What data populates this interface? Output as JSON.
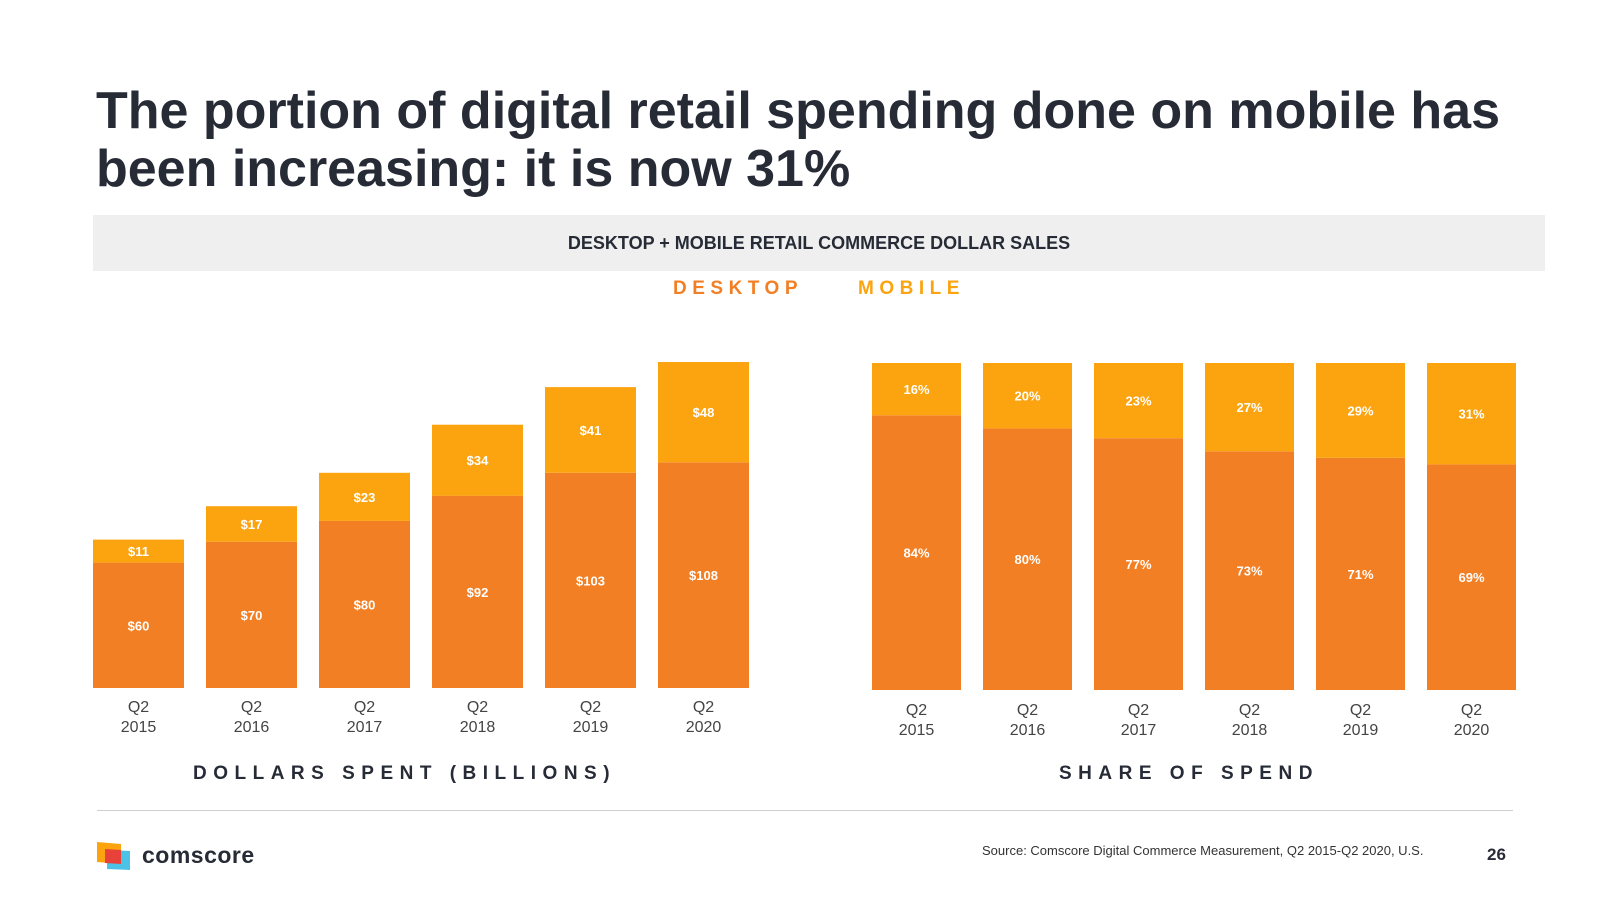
{
  "slide": {
    "title": "The portion of digital retail spending done on mobile has been increasing: it is now 31%",
    "banner": "DESKTOP + MOBILE RETAIL COMMERCE DOLLAR SALES",
    "legend": {
      "desktop": "DESKTOP",
      "mobile": "MOBILE"
    },
    "footer": {
      "brand": "comscore",
      "source": "Source: Comscore Digital Commerce Measurement, Q2 2015-Q2 2020, U.S.",
      "page_number": "26"
    }
  },
  "colors": {
    "desktop": "#f37f24",
    "mobile": "#fca410",
    "text": "#262b36",
    "banner_bg": "#efefef"
  },
  "chart_data": [
    {
      "type": "bar",
      "stacked": true,
      "title": "DOLLARS SPENT (BILLIONS)",
      "categories": [
        [
          "Q2",
          "2015"
        ],
        [
          "Q2",
          "2016"
        ],
        [
          "Q2",
          "2017"
        ],
        [
          "Q2",
          "2018"
        ],
        [
          "Q2",
          "2019"
        ],
        [
          "Q2",
          "2020"
        ]
      ],
      "series": [
        {
          "name": "DESKTOP",
          "values": [
            60,
            70,
            80,
            92,
            103,
            108
          ],
          "labels": [
            "$60",
            "$70",
            "$80",
            "$92",
            "$103",
            "$108"
          ]
        },
        {
          "name": "MOBILE",
          "values": [
            11,
            17,
            23,
            34,
            41,
            48
          ],
          "labels": [
            "$11",
            "$17",
            "$23",
            "$34",
            "$41",
            "$48"
          ]
        }
      ],
      "ylim": [
        0,
        156
      ],
      "grid": false,
      "legend": "top-center"
    },
    {
      "type": "bar",
      "stacked": true,
      "title": "SHARE OF SPEND",
      "categories": [
        [
          "Q2",
          "2015"
        ],
        [
          "Q2",
          "2016"
        ],
        [
          "Q2",
          "2017"
        ],
        [
          "Q2",
          "2018"
        ],
        [
          "Q2",
          "2019"
        ],
        [
          "Q2",
          "2020"
        ]
      ],
      "series": [
        {
          "name": "DESKTOP",
          "values": [
            84,
            80,
            77,
            73,
            71,
            69
          ],
          "labels": [
            "84%",
            "80%",
            "77%",
            "73%",
            "71%",
            "69%"
          ]
        },
        {
          "name": "MOBILE",
          "values": [
            16,
            20,
            23,
            27,
            29,
            31
          ],
          "labels": [
            "16%",
            "20%",
            "23%",
            "27%",
            "29%",
            "31%"
          ]
        }
      ],
      "ylim": [
        0,
        100
      ],
      "grid": false,
      "legend": "top-center"
    }
  ]
}
